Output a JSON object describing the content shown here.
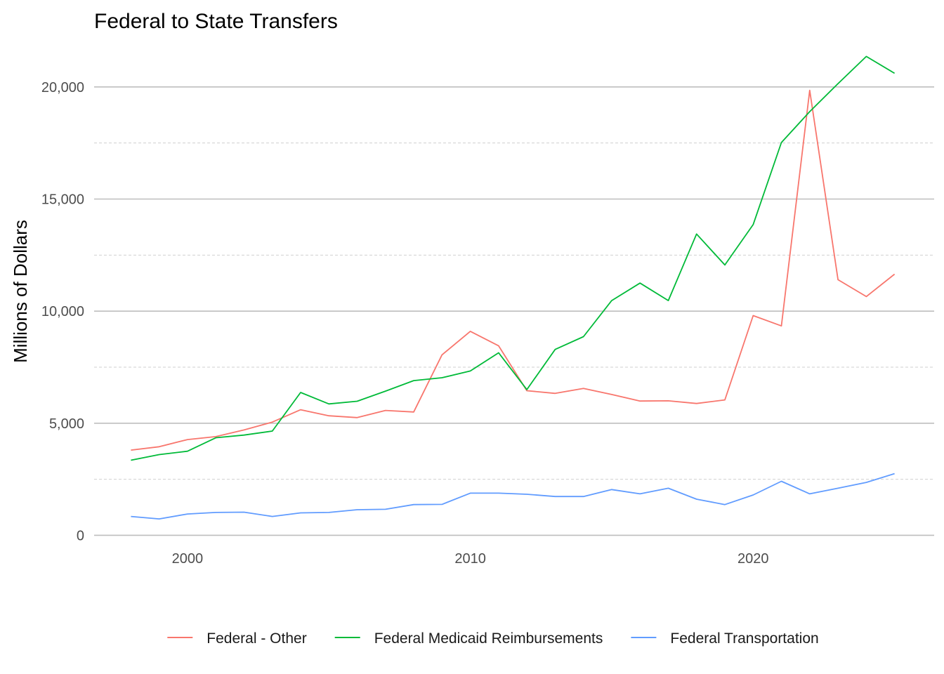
{
  "chart_data": {
    "type": "line",
    "title": "Federal to State Transfers",
    "xlabel": "",
    "ylabel": "Millions of Dollars",
    "x": [
      1998,
      1999,
      2000,
      2001,
      2002,
      2003,
      2004,
      2005,
      2006,
      2007,
      2008,
      2009,
      2010,
      2011,
      2012,
      2013,
      2014,
      2015,
      2016,
      2017,
      2018,
      2019,
      2020,
      2021,
      2022,
      2023,
      2024,
      2025
    ],
    "xlim": [
      1996.7,
      2026.4
    ],
    "ylim": [
      -300,
      22000
    ],
    "x_ticks": [
      2000,
      2010,
      2020
    ],
    "x_tick_labels": [
      "2000",
      "2010",
      "2020"
    ],
    "y_ticks": [
      0,
      5000,
      10000,
      15000,
      20000
    ],
    "y_tick_labels": [
      "0",
      "5,000",
      "10,000",
      "15,000",
      "20,000"
    ],
    "y_minor_ticks": [
      2500,
      7500,
      12500,
      17500
    ],
    "grid": true,
    "legend_position": "bottom",
    "series": [
      {
        "name": "Federal - Other",
        "color": "#F8766D",
        "values": [
          3800,
          3950,
          4270,
          4400,
          4700,
          5050,
          5600,
          5330,
          5250,
          5570,
          5500,
          8050,
          9100,
          8450,
          6450,
          6330,
          6550,
          6280,
          5990,
          6000,
          5880,
          6040,
          9800,
          9340,
          19850,
          11400,
          10650,
          11650
        ]
      },
      {
        "name": "Federal Medicaid Reimbursements",
        "color": "#00BA38",
        "values": [
          3350,
          3600,
          3750,
          4350,
          4470,
          4650,
          6370,
          5860,
          5980,
          6430,
          6900,
          7030,
          7330,
          8140,
          6500,
          8290,
          8860,
          10470,
          11250,
          10470,
          13440,
          12060,
          13860,
          17520,
          18900,
          20150,
          21360,
          20610
        ]
      },
      {
        "name": "Federal Transportation",
        "color": "#619CFF",
        "values": [
          840,
          730,
          950,
          1020,
          1030,
          840,
          1000,
          1020,
          1140,
          1160,
          1370,
          1380,
          1880,
          1880,
          1830,
          1730,
          1730,
          2040,
          1850,
          2100,
          1610,
          1370,
          1800,
          2410,
          1850,
          2100,
          2360,
          2750
        ]
      }
    ]
  }
}
